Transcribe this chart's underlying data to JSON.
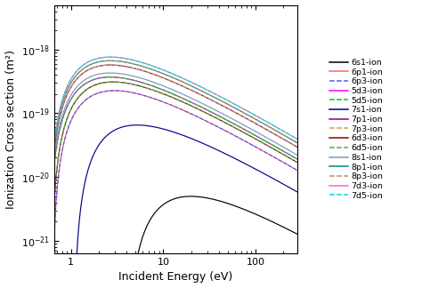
{
  "title": "",
  "xlabel": "Incident Energy (eV)",
  "ylabel": "Ionization Cross section (m²)",
  "xlim_log": [
    -0.18,
    2.45
  ],
  "ylim_log": [
    -21.2,
    -17.3
  ],
  "series": [
    {
      "label": "6s1-ion",
      "color": "#000000",
      "linestyle": "-",
      "threshold": 3.89,
      "A": 2.2e-20,
      "n": 1.6
    },
    {
      "label": "6p1-ion",
      "color": "#FF6666",
      "linestyle": "-",
      "threshold": 0.62,
      "A": 9.5e-19,
      "n": 1.35
    },
    {
      "label": "6p3-ion",
      "color": "#5555FF",
      "linestyle": "--",
      "threshold": 0.62,
      "A": 9.5e-19,
      "n": 1.35
    },
    {
      "label": "5d3-ion",
      "color": "#FF00FF",
      "linestyle": "-",
      "threshold": 0.56,
      "A": 1.55e-18,
      "n": 1.35
    },
    {
      "label": "5d5-ion",
      "color": "#00CC00",
      "linestyle": "--",
      "threshold": 0.56,
      "A": 1.55e-18,
      "n": 1.35
    },
    {
      "label": "7s1-ion",
      "color": "#00008B",
      "linestyle": "-",
      "threshold": 1.06,
      "A": 2.8e-19,
      "n": 1.45
    },
    {
      "label": "7p1-ion",
      "color": "#880088",
      "linestyle": "-",
      "threshold": 0.56,
      "A": 2.4e-18,
      "n": 1.35
    },
    {
      "label": "7p3-ion",
      "color": "#C8A050",
      "linestyle": "--",
      "threshold": 0.56,
      "A": 2.4e-18,
      "n": 1.35
    },
    {
      "label": "6d3-ion",
      "color": "#8B0000",
      "linestyle": "-",
      "threshold": 0.6,
      "A": 1.3e-18,
      "n": 1.35
    },
    {
      "label": "6d5-ion",
      "color": "#44BB44",
      "linestyle": "--",
      "threshold": 0.6,
      "A": 1.3e-18,
      "n": 1.35
    },
    {
      "label": "8s1-ion",
      "color": "#7799BB",
      "linestyle": "-",
      "threshold": 0.56,
      "A": 1.8e-18,
      "n": 1.35
    },
    {
      "label": "8p1-ion",
      "color": "#008888",
      "linestyle": "-",
      "threshold": 0.56,
      "A": 2.8e-18,
      "n": 1.35
    },
    {
      "label": "8p3-ion",
      "color": "#B89060",
      "linestyle": "--",
      "threshold": 0.56,
      "A": 2.8e-18,
      "n": 1.35
    },
    {
      "label": "7d3-ion",
      "color": "#FF66BB",
      "linestyle": "-",
      "threshold": 0.56,
      "A": 3.2e-18,
      "n": 1.35
    },
    {
      "label": "7d5-ion",
      "color": "#00DDDD",
      "linestyle": "--",
      "threshold": 0.56,
      "A": 3.2e-18,
      "n": 1.35
    }
  ],
  "background_color": "#ffffff",
  "legend_fontsize": 6.8,
  "axis_fontsize": 9
}
